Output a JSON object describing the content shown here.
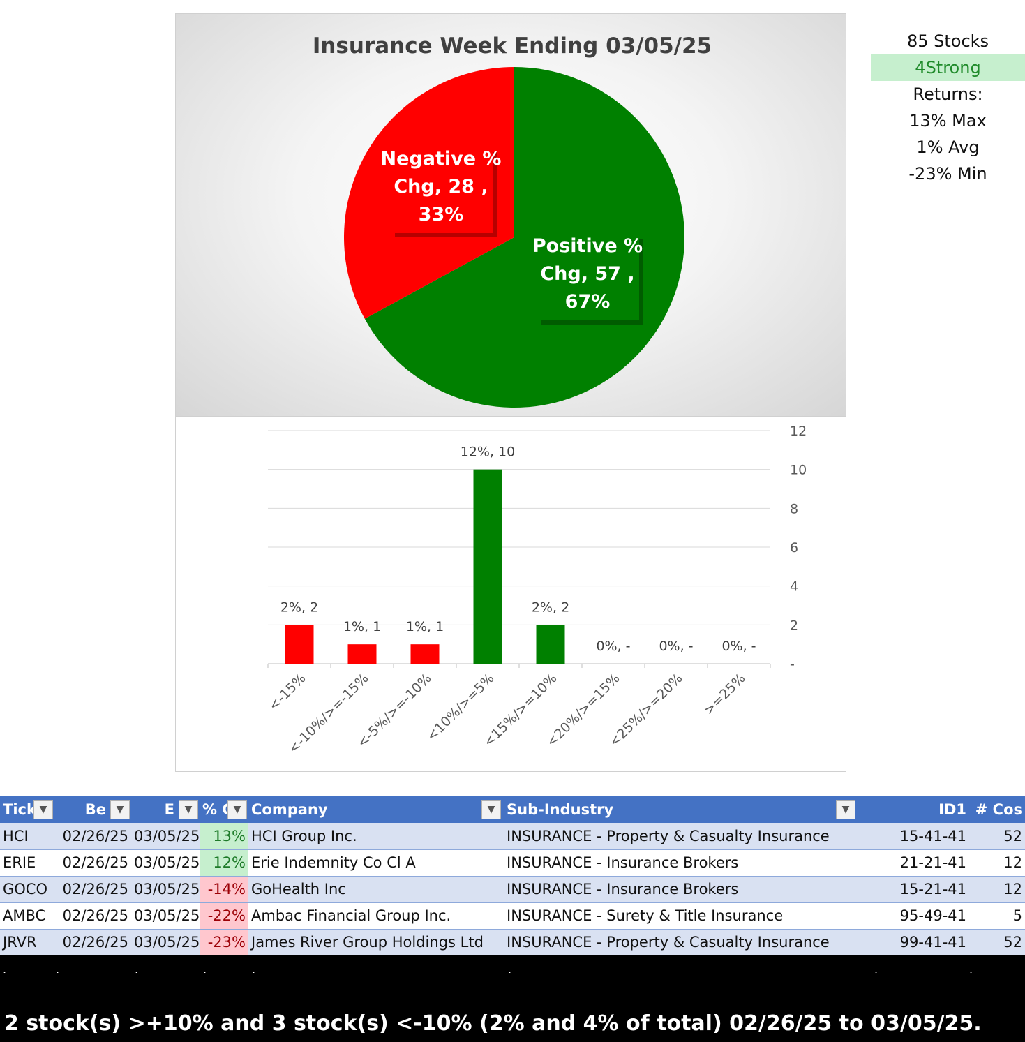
{
  "chart_data": [
    {
      "type": "pie",
      "title": "Insurance Week Ending 03/05/25",
      "slices": [
        {
          "name": "Positive % Chg",
          "value": 57,
          "percent": "67%",
          "color": "#008000"
        },
        {
          "name": "Negative % Chg",
          "value": 28,
          "percent": "33%",
          "color": "#ff0000"
        }
      ]
    },
    {
      "type": "bar",
      "categories": [
        "<-15%",
        "<-10%/>=-15%",
        "<-5%/>=-10%",
        "<10%/>=5%",
        "<15%/>=10%",
        "<20%/>=15%",
        "<25%/>=20%",
        ">=25%"
      ],
      "values": [
        2,
        1,
        1,
        10,
        2,
        0,
        0,
        0
      ],
      "data_labels": [
        "2%,  2",
        "1%,  1",
        "1%,  1",
        "12%,  10",
        "2%,  2",
        "0%,  -",
        "0%,  -",
        "0%,  -"
      ],
      "colors": [
        "#ff0000",
        "#ff0000",
        "#ff0000",
        "#008000",
        "#008000",
        "#008000",
        "#008000",
        "#008000"
      ],
      "ylim": [
        0,
        12
      ],
      "yticks": [
        0,
        2,
        4,
        6,
        8,
        10,
        12
      ],
      "ytick_labels": [
        "-",
        "2",
        "4",
        "6",
        "8",
        "10",
        "12"
      ],
      "y_axis_side": "right",
      "grid": true
    }
  ],
  "stats": {
    "stocks": "85 Stocks",
    "strong": "4Strong",
    "returns_label": "Returns:",
    "max": "13% Max",
    "avg": "1% Avg",
    "min": "-23% Min"
  },
  "table": {
    "headers": [
      "Tick",
      "Be",
      "E",
      "% C",
      "Company",
      "Sub-Industry",
      "ID1",
      "# Cos"
    ],
    "rows": [
      [
        "HCI",
        "02/26/25",
        "03/05/25",
        "13%",
        "HCI Group Inc.",
        "INSURANCE - Property & Casualty Insurance",
        "15-41-41",
        "52"
      ],
      [
        "ERIE",
        "02/26/25",
        "03/05/25",
        "12%",
        "Erie Indemnity Co Cl A",
        "INSURANCE - Insurance Brokers",
        "21-21-41",
        "12"
      ],
      [
        "GOCO",
        "02/26/25",
        "03/05/25",
        "-14%",
        "GoHealth Inc",
        "INSURANCE - Insurance Brokers",
        "15-21-41",
        "12"
      ],
      [
        "AMBC",
        "02/26/25",
        "03/05/25",
        "-22%",
        "Ambac Financial Group Inc.",
        "INSURANCE - Surety & Title Insurance",
        "95-49-41",
        "5"
      ],
      [
        "JRVR",
        "02/26/25",
        "03/05/25",
        "-23%",
        "James River Group Holdings Ltd",
        "INSURANCE - Property & Casualty Insurance",
        "99-41-41",
        "52"
      ]
    ]
  },
  "footer": {
    "summary": "2 stock(s) >+10% and 3 stock(s) <-10% (2% and 4% of total) 02/26/25 to 03/05/25.",
    "dot": "."
  }
}
